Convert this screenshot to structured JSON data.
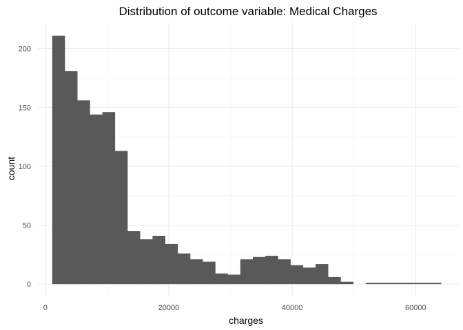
{
  "chart_data": {
    "type": "histogram",
    "title": "Distribution of outcome variable: Medical Charges",
    "xlabel": "charges",
    "ylabel": "count",
    "xlim": [
      -1200,
      67000
    ],
    "ylim": [
      -11,
      222
    ],
    "x_ticks": [
      0,
      20000,
      40000,
      60000
    ],
    "x_tick_labels": [
      "0",
      "20000",
      "40000",
      "60000"
    ],
    "y_ticks": [
      0,
      50,
      100,
      150,
      200
    ],
    "y_tick_labels": [
      "0",
      "50",
      "100",
      "150",
      "200"
    ],
    "grid": true,
    "legend": "none",
    "bar_color": "#595959",
    "bins": [
      {
        "x0": 1122,
        "x1": 3153,
        "count": 211
      },
      {
        "x0": 3153,
        "x1": 5185,
        "count": 181
      },
      {
        "x0": 5185,
        "x1": 7216,
        "count": 156
      },
      {
        "x0": 7216,
        "x1": 9248,
        "count": 144
      },
      {
        "x0": 9248,
        "x1": 11279,
        "count": 146
      },
      {
        "x0": 11279,
        "x1": 13311,
        "count": 113
      },
      {
        "x0": 13311,
        "x1": 15342,
        "count": 45
      },
      {
        "x0": 15342,
        "x1": 17374,
        "count": 38
      },
      {
        "x0": 17374,
        "x1": 19405,
        "count": 41
      },
      {
        "x0": 19405,
        "x1": 21437,
        "count": 34
      },
      {
        "x0": 21437,
        "x1": 23468,
        "count": 26
      },
      {
        "x0": 23468,
        "x1": 25500,
        "count": 21
      },
      {
        "x0": 25500,
        "x1": 27531,
        "count": 19
      },
      {
        "x0": 27531,
        "x1": 29563,
        "count": 9
      },
      {
        "x0": 29563,
        "x1": 31594,
        "count": 8
      },
      {
        "x0": 31594,
        "x1": 33626,
        "count": 21
      },
      {
        "x0": 33626,
        "x1": 35657,
        "count": 23
      },
      {
        "x0": 35657,
        "x1": 37689,
        "count": 24
      },
      {
        "x0": 37689,
        "x1": 39720,
        "count": 21
      },
      {
        "x0": 39720,
        "x1": 41752,
        "count": 16
      },
      {
        "x0": 41752,
        "x1": 43783,
        "count": 14
      },
      {
        "x0": 43783,
        "x1": 45815,
        "count": 17
      },
      {
        "x0": 45815,
        "x1": 47846,
        "count": 6
      },
      {
        "x0": 47846,
        "x1": 49878,
        "count": 2
      },
      {
        "x0": 49878,
        "x1": 51909,
        "count": 0
      },
      {
        "x0": 51909,
        "x1": 53941,
        "count": 1
      },
      {
        "x0": 53941,
        "x1": 55972,
        "count": 1
      },
      {
        "x0": 55972,
        "x1": 58004,
        "count": 1
      },
      {
        "x0": 58004,
        "x1": 60035,
        "count": 1
      },
      {
        "x0": 60035,
        "x1": 62067,
        "count": 1
      },
      {
        "x0": 62067,
        "x1": 64098,
        "count": 1
      }
    ]
  }
}
